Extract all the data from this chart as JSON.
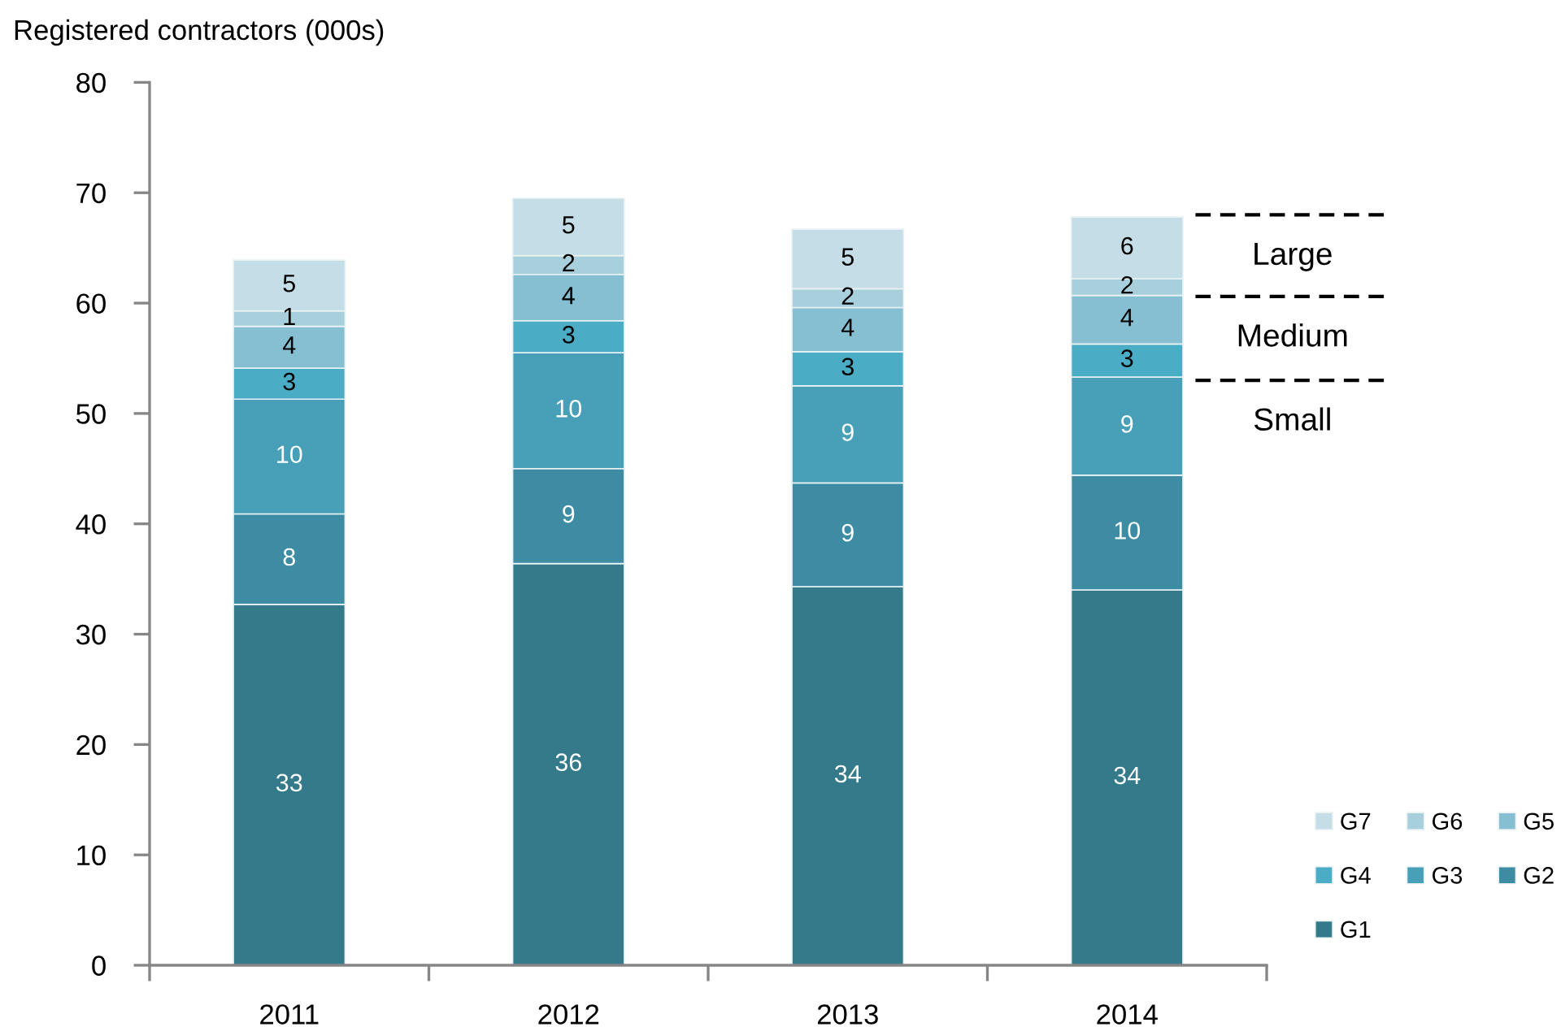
{
  "chart_data": {
    "type": "bar",
    "stacked": true,
    "ylabel": "Registered contractors (000s)",
    "categories": [
      "2011",
      "2012",
      "2013",
      "2014"
    ],
    "ylim": [
      0,
      80
    ],
    "yticks": [
      0,
      10,
      20,
      30,
      40,
      50,
      60,
      70,
      80
    ],
    "legend": "bottom right",
    "series": [
      {
        "name": "G1",
        "color": "#347a8a",
        "values": [
          32.7,
          36.4,
          34.3,
          34.0
        ],
        "value_labels": [
          "33",
          "36",
          "34",
          "34"
        ]
      },
      {
        "name": "G2",
        "color": "#3d8ca3",
        "values": [
          8.2,
          8.6,
          9.4,
          10.4
        ],
        "value_labels": [
          "8",
          "9",
          "9",
          "10"
        ]
      },
      {
        "name": "G3",
        "color": "#479fb8",
        "values": [
          10.4,
          10.5,
          8.8,
          8.9
        ],
        "value_labels": [
          "10",
          "10",
          "9",
          "9"
        ]
      },
      {
        "name": "G4",
        "color": "#4bacc6",
        "values": [
          2.8,
          2.9,
          3.1,
          3.0
        ],
        "value_labels": [
          "3",
          "3",
          "3",
          "3"
        ]
      },
      {
        "name": "G5",
        "color": "#86bfd2",
        "values": [
          3.8,
          4.2,
          4.0,
          4.4
        ],
        "value_labels": [
          "4",
          "4",
          "4",
          "4"
        ]
      },
      {
        "name": "G6",
        "color": "#a8cfdc",
        "values": [
          1.4,
          1.7,
          1.7,
          1.5
        ],
        "value_labels": [
          "1",
          "2",
          "2",
          "2"
        ]
      },
      {
        "name": "G7",
        "color": "#c5dde6",
        "values": [
          4.6,
          5.2,
          5.4,
          5.6
        ],
        "value_labels": [
          "5",
          "5",
          "5",
          "6"
        ]
      }
    ],
    "ref_lines": [
      {
        "axis": "y",
        "value": 68,
        "label": "Large",
        "line_style": "dashed",
        "color": "#000000"
      },
      {
        "axis": "y",
        "value": 60.6,
        "label": "Medium",
        "line_style": "dashed",
        "color": "#000000"
      },
      {
        "axis": "y",
        "value": 53,
        "label": "Small",
        "line_style": "dashed",
        "color": "#000000"
      }
    ]
  }
}
